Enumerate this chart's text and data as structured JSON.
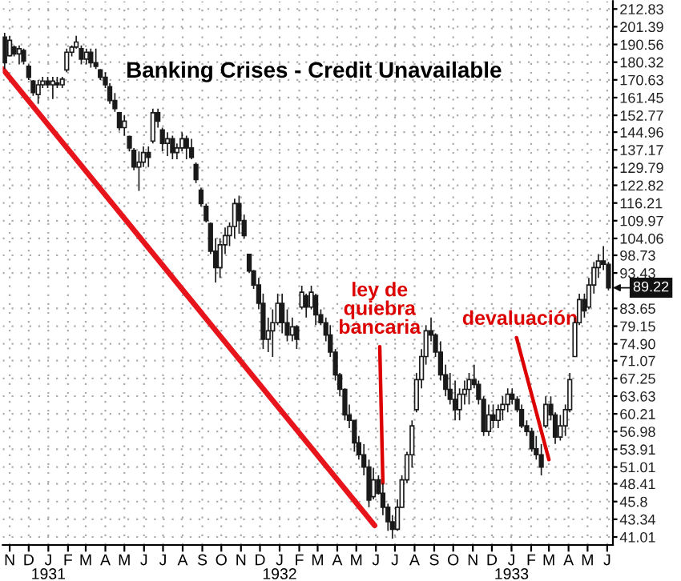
{
  "chart_data": {
    "type": "candlestick",
    "title": "Banking Crises - Credit Unavailable",
    "log": true,
    "grid": true,
    "legend": false,
    "xlim": [
      "1930-10-21",
      "1933-06-10"
    ],
    "ylim": [
      40.0,
      218.1
    ],
    "yticks": [
      212.83,
      201.39,
      190.56,
      180.32,
      170.63,
      161.45,
      152.77,
      144.96,
      137.17,
      129.79,
      122.82,
      116.21,
      109.97,
      104.06,
      98.73,
      93.43,
      83.65,
      79.15,
      {
        "value": 74.9,
        "label": "74.90"
      },
      71.07,
      67.25,
      63.63,
      60.21,
      56.98,
      53.91,
      51.01,
      48.41,
      45.8,
      43.34,
      41.01
    ],
    "xticks": [
      {
        "value": "1930-11-01",
        "label": "N"
      },
      {
        "value": "1930-12-01",
        "label": "D"
      },
      {
        "value": "1931-01-01",
        "label": "J\n1931"
      },
      {
        "value": "1931-02-01",
        "label": "F"
      },
      {
        "value": "1931-03-01",
        "label": "M"
      },
      {
        "value": "1931-04-01",
        "label": "A"
      },
      {
        "value": "1931-05-01",
        "label": "M"
      },
      {
        "value": "1931-06-01",
        "label": "J"
      },
      {
        "value": "1931-07-01",
        "label": "J"
      },
      {
        "value": "1931-08-01",
        "label": "A"
      },
      {
        "value": "1931-09-01",
        "label": "S"
      },
      {
        "value": "1931-10-01",
        "label": "O"
      },
      {
        "value": "1931-11-01",
        "label": "N"
      },
      {
        "value": "1931-12-01",
        "label": "D"
      },
      {
        "value": "1932-01-01",
        "label": "J\n1932"
      },
      {
        "value": "1932-02-01",
        "label": "F"
      },
      {
        "value": "1932-03-01",
        "label": "M"
      },
      {
        "value": "1932-04-01",
        "label": "A"
      },
      {
        "value": "1932-05-01",
        "label": "M"
      },
      {
        "value": "1932-06-01",
        "label": "J"
      },
      {
        "value": "1932-07-01",
        "label": "J"
      },
      {
        "value": "1932-08-01",
        "label": "A"
      },
      {
        "value": "1932-09-01",
        "label": "S"
      },
      {
        "value": "1932-10-01",
        "label": "O"
      },
      {
        "value": "1932-11-01",
        "label": "N"
      },
      {
        "value": "1932-12-01",
        "label": "D"
      },
      {
        "value": "1933-01-01",
        "label": "J\n1933"
      },
      {
        "value": "1933-02-01",
        "label": "F"
      },
      {
        "value": "1933-03-01",
        "label": "M"
      },
      {
        "value": "1933-04-01",
        "label": "A"
      },
      {
        "value": "1933-05-01",
        "label": "M"
      },
      {
        "value": "1933-06-01",
        "label": "J"
      }
    ],
    "series": [
      {
        "color": "#1a1a1a",
        "x": [
          "1930-10-24",
          "1930-11-01",
          "1930-11-08",
          "1930-11-16",
          "1930-11-23",
          "1930-12-01",
          "1930-12-08",
          "1930-12-16",
          "1930-12-23",
          "1930-12-31",
          "1931-01-08",
          "1931-01-15",
          "1931-01-23",
          "1931-01-30",
          "1931-02-07",
          "1931-02-14",
          "1931-02-22",
          "1931-03-02",
          "1931-03-09",
          "1931-03-17",
          "1931-03-24",
          "1931-04-01",
          "1931-04-08",
          "1931-04-16",
          "1931-04-23",
          "1931-05-01",
          "1931-05-09",
          "1931-05-16",
          "1931-05-24",
          "1931-05-31",
          "1931-06-08",
          "1931-06-15",
          "1931-06-23",
          "1931-06-30",
          "1931-07-08",
          "1931-07-16",
          "1931-07-23",
          "1931-07-31",
          "1931-08-07",
          "1931-08-15",
          "1931-08-22",
          "1931-08-30",
          "1931-09-07",
          "1931-09-14",
          "1931-09-22",
          "1931-09-29",
          "1931-10-07",
          "1931-10-14",
          "1931-10-22",
          "1931-10-29",
          "1931-11-06",
          "1931-11-14",
          "1931-11-21",
          "1931-11-29",
          "1931-12-06",
          "1931-12-14",
          "1931-12-21",
          "1931-12-29",
          "1932-01-05",
          "1932-01-13",
          "1932-01-21",
          "1932-01-28",
          "1932-02-05",
          "1932-02-12",
          "1932-02-20",
          "1932-02-27",
          "1932-03-06",
          "1932-03-14",
          "1932-03-21",
          "1932-03-29",
          "1932-04-05",
          "1932-04-13",
          "1932-04-20",
          "1932-04-28",
          "1932-05-05",
          "1932-05-13",
          "1932-05-21",
          "1932-05-28",
          "1932-06-05",
          "1932-06-12",
          "1932-06-20",
          "1932-06-27",
          "1932-07-05",
          "1932-07-12",
          "1932-07-20",
          "1932-07-28",
          "1932-08-04",
          "1932-08-12",
          "1932-08-19",
          "1932-08-27",
          "1932-09-03",
          "1932-09-11",
          "1932-09-19",
          "1932-09-26",
          "1932-10-04",
          "1932-10-11",
          "1932-10-19",
          "1932-10-26",
          "1932-11-03",
          "1932-11-10",
          "1932-11-18",
          "1932-11-26",
          "1932-12-03",
          "1932-12-11",
          "1932-12-18",
          "1932-12-26",
          "1933-01-02",
          "1933-01-10",
          "1933-01-17",
          "1933-01-25",
          "1933-02-02",
          "1933-02-09",
          "1933-02-17",
          "1933-02-24",
          "1933-03-04",
          "1933-03-11",
          "1933-03-19",
          "1933-03-27",
          "1933-04-03",
          "1933-04-11",
          "1933-04-18",
          "1933-04-26",
          "1933-05-03",
          "1933-05-11",
          "1933-05-18",
          "1933-05-26",
          "1933-06-03"
        ],
        "ohlc": [
          [
            195,
            197.6,
            176.5,
            180
          ],
          [
            184,
            195.7,
            183.6,
            193
          ],
          [
            189,
            190.0,
            183.6,
            185
          ],
          [
            185,
            190.0,
            179.1,
            188
          ],
          [
            187,
            188.1,
            179.1,
            181
          ],
          [
            178,
            179.1,
            170.5,
            172
          ],
          [
            170,
            170.5,
            162.3,
            164
          ],
          [
            163,
            170.5,
            158.3,
            168
          ],
          [
            168,
            172.2,
            166.3,
            170
          ],
          [
            170,
            172.2,
            166.3,
            168
          ],
          [
            168,
            172.2,
            160.7,
            170
          ],
          [
            169,
            172.2,
            166.3,
            168
          ],
          [
            168,
            172.2,
            166.3,
            171
          ],
          [
            176,
            188.1,
            174.7,
            186
          ],
          [
            186,
            190.0,
            183.6,
            189
          ],
          [
            189,
            195.7,
            188.1,
            192
          ],
          [
            188,
            190.0,
            179.1,
            182
          ],
          [
            182,
            188.1,
            179.1,
            186
          ],
          [
            186,
            188.1,
            177.3,
            180
          ],
          [
            180,
            188.1,
            176.5,
            178
          ],
          [
            176,
            176.5,
            170.5,
            172
          ],
          [
            172,
            174.7,
            166.3,
            168
          ],
          [
            167,
            168.8,
            158.3,
            160
          ],
          [
            160,
            163.8,
            154.4,
            156
          ],
          [
            154,
            154.4,
            145.6,
            147
          ],
          [
            147,
            152.9,
            143.4,
            150
          ],
          [
            143,
            143.4,
            136.5,
            138
          ],
          [
            137,
            137.9,
            128.7,
            130
          ],
          [
            130,
            136.5,
            120.7,
            132
          ],
          [
            132,
            138.6,
            130.0,
            136
          ],
          [
            136,
            138.6,
            130.0,
            134
          ],
          [
            141,
            156.0,
            139.9,
            154
          ],
          [
            154,
            156.0,
            147.0,
            150
          ],
          [
            146,
            147.0,
            136.5,
            140
          ],
          [
            140,
            144.9,
            134.5,
            142
          ],
          [
            142,
            143.4,
            133.2,
            136
          ],
          [
            136,
            139.9,
            133.2,
            138
          ],
          [
            138,
            144.9,
            136.5,
            142
          ],
          [
            142,
            143.4,
            133.2,
            138
          ],
          [
            138,
            142.0,
            133.2,
            134
          ],
          [
            131,
            131.9,
            123.7,
            125
          ],
          [
            121,
            121.9,
            114.9,
            116
          ],
          [
            115,
            116.0,
            109.4,
            110
          ],
          [
            109,
            109.4,
            99.1,
            100
          ],
          [
            100,
            104.1,
            90.7,
            95
          ],
          [
            95,
            104.1,
            92.0,
            102
          ],
          [
            102,
            107.7,
            99.1,
            105
          ],
          [
            105,
            109.4,
            101.6,
            108
          ],
          [
            108,
            117.8,
            104.1,
            116
          ],
          [
            116,
            118.9,
            105.6,
            110
          ],
          [
            110,
            112.1,
            104.1,
            105
          ],
          [
            99,
            99.1,
            93.4,
            94
          ],
          [
            94,
            94.3,
            88.9,
            90
          ],
          [
            90,
            92.0,
            83.4,
            85
          ],
          [
            85,
            87.6,
            73.7,
            76
          ],
          [
            76,
            81.3,
            73.0,
            78
          ],
          [
            78,
            83.4,
            71.9,
            80
          ],
          [
            80,
            87.6,
            79.4,
            85
          ],
          [
            85,
            87.6,
            77.4,
            80
          ],
          [
            80,
            83.4,
            75.5,
            77
          ],
          [
            77,
            81.3,
            75.5,
            79
          ],
          [
            79,
            79.4,
            73.7,
            76
          ],
          [
            84,
            89.8,
            83.4,
            88
          ],
          [
            87,
            87.6,
            81.3,
            84
          ],
          [
            84,
            89.8,
            83.4,
            88
          ],
          [
            87,
            87.6,
            79.4,
            82
          ],
          [
            82,
            83.4,
            79.4,
            80
          ],
          [
            80,
            81.3,
            75.5,
            77
          ],
          [
            77,
            79.4,
            71.9,
            73
          ],
          [
            73,
            73.7,
            66.8,
            68
          ],
          [
            68,
            68.4,
            63.6,
            65
          ],
          [
            65,
            65.2,
            59.0,
            60
          ],
          [
            60,
            62.0,
            57.6,
            59
          ],
          [
            59,
            59.0,
            53.5,
            55
          ],
          [
            55,
            56.2,
            52.2,
            53
          ],
          [
            53,
            54.8,
            49.7,
            51
          ],
          [
            51,
            52.2,
            45.0,
            46
          ],
          [
            46.5,
            50.9,
            46.1,
            49
          ],
          [
            49,
            49.7,
            46.8,
            47
          ],
          [
            47,
            48.5,
            43.9,
            45
          ],
          [
            45,
            45.5,
            41.8,
            43
          ],
          [
            43,
            43.9,
            40.8,
            42
          ],
          [
            42,
            46.1,
            41.8,
            45
          ],
          [
            45,
            49.7,
            45.0,
            49
          ],
          [
            49,
            53.5,
            48.5,
            53
          ],
          [
            53,
            59.0,
            50.9,
            58
          ],
          [
            61,
            68.4,
            60.5,
            67
          ],
          [
            67,
            73.7,
            65.2,
            72
          ],
          [
            72,
            79.4,
            70.2,
            78
          ],
          [
            78,
            81.3,
            75.5,
            77
          ],
          [
            77,
            77.4,
            71.9,
            73
          ],
          [
            73,
            75.5,
            66.8,
            68
          ],
          [
            68,
            70.2,
            63.6,
            65
          ],
          [
            65,
            68.4,
            62.0,
            63
          ],
          [
            63,
            66.8,
            59.0,
            61
          ],
          [
            61,
            65.2,
            59.0,
            64
          ],
          [
            64,
            66.8,
            62.0,
            65
          ],
          [
            65,
            68.4,
            62.0,
            67
          ],
          [
            67,
            70.2,
            65.2,
            66
          ],
          [
            66,
            66.8,
            62.0,
            63
          ],
          [
            63,
            63.6,
            56.2,
            57
          ],
          [
            57,
            62.0,
            56.2,
            60
          ],
          [
            60,
            62.0,
            57.6,
            59
          ],
          [
            59,
            62.0,
            57.6,
            61
          ],
          [
            61,
            63.6,
            59.0,
            62
          ],
          [
            62,
            65.2,
            60.5,
            64
          ],
          [
            64,
            65.2,
            62.0,
            63
          ],
          [
            63,
            63.6,
            60.5,
            61
          ],
          [
            61,
            62.0,
            57.6,
            58
          ],
          [
            58,
            59.0,
            56.2,
            57
          ],
          [
            57,
            57.6,
            53.5,
            54
          ],
          [
            54,
            56.2,
            52.2,
            53
          ],
          [
            53,
            54.8,
            49.7,
            51
          ],
          [
            58,
            63.6,
            57.6,
            62
          ],
          [
            62,
            63.6,
            59.0,
            60
          ],
          [
            60,
            60.5,
            54.8,
            56
          ],
          [
            56,
            60.0,
            55.4,
            58
          ],
          [
            58,
            62.0,
            56.2,
            61
          ],
          [
            61,
            68.4,
            60.5,
            67
          ],
          [
            72,
            81.3,
            71.9,
            80
          ],
          [
            80,
            87.6,
            79.4,
            86
          ],
          [
            86,
            87.6,
            81.3,
            83
          ],
          [
            84,
            92.0,
            83.4,
            90
          ],
          [
            90,
            96.7,
            87.6,
            95
          ],
          [
            95,
            99.1,
            92.0,
            97
          ],
          [
            97,
            101.6,
            94.3,
            96
          ],
          [
            96,
            96.7,
            88.5,
            89.22
          ]
        ]
      },
      {
        "type": "line",
        "color": "#e8141b",
        "x": [
          "1930-10-21",
          "1932-05-30"
        ],
        "values": [
          176.5,
          42.5
        ]
      }
    ],
    "annotations": [
      {
        "text": "ley de\nquiebra\nbancaria",
        "x": "1932-06-12",
        "y": 48.5
      },
      {
        "text": "devaluación",
        "x": "1933-03-01",
        "y": 52.2
      },
      {
        "text": "89.22",
        "x": "1933-06-03",
        "y": 89.22
      }
    ]
  }
}
